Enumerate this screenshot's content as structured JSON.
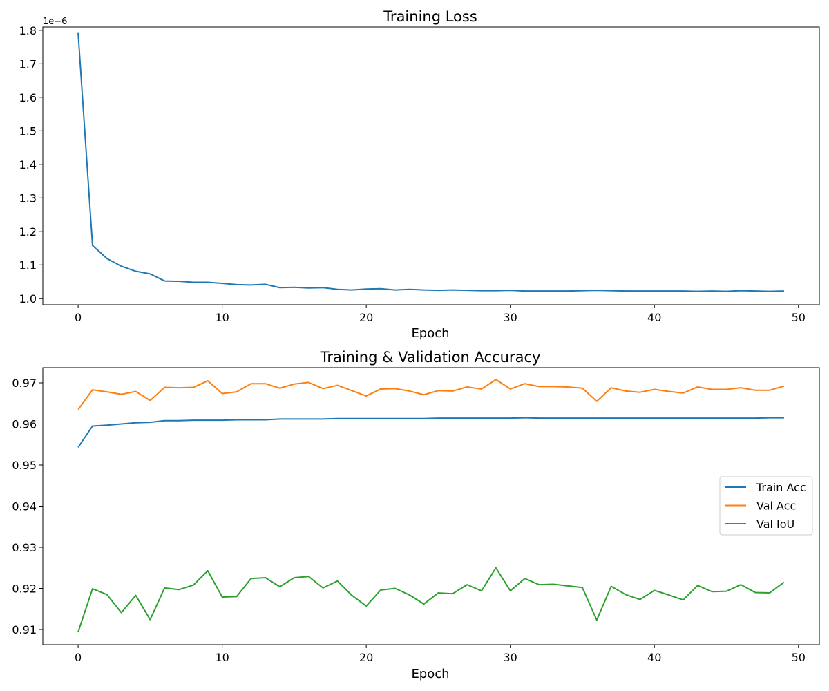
{
  "chart_data": [
    {
      "type": "line",
      "title": "Training Loss",
      "xlabel": "Epoch",
      "ylabel": "",
      "offset_label": "1e−6",
      "xlim": [
        -2.45,
        51.45
      ],
      "ylim": [
        0.981,
        1.81
      ],
      "xticks": [
        0,
        10,
        20,
        30,
        40,
        50
      ],
      "yticks": [
        1.0,
        1.1,
        1.2,
        1.3,
        1.4,
        1.5,
        1.6,
        1.7,
        1.8
      ],
      "ytick_labels": [
        "1.0",
        "1.1",
        "1.2",
        "1.3",
        "1.4",
        "1.5",
        "1.6",
        "1.7",
        "1.8"
      ],
      "grid": false,
      "legend": null,
      "series": [
        {
          "color": "#1f77b4",
          "x": [
            0,
            1,
            2,
            3,
            4,
            5,
            6,
            7,
            8,
            9,
            10,
            11,
            12,
            13,
            14,
            15,
            16,
            17,
            18,
            19,
            20,
            21,
            22,
            23,
            24,
            25,
            26,
            27,
            28,
            29,
            30,
            31,
            32,
            33,
            34,
            35,
            36,
            37,
            38,
            39,
            40,
            41,
            42,
            43,
            44,
            45,
            46,
            47,
            48,
            49
          ],
          "values": [
            1.792,
            1.158,
            1.119,
            1.096,
            1.081,
            1.073,
            1.052,
            1.051,
            1.048,
            1.048,
            1.045,
            1.041,
            1.04,
            1.042,
            1.032,
            1.033,
            1.031,
            1.032,
            1.027,
            1.025,
            1.028,
            1.029,
            1.025,
            1.027,
            1.025,
            1.024,
            1.025,
            1.024,
            1.023,
            1.023,
            1.024,
            1.022,
            1.022,
            1.022,
            1.022,
            1.023,
            1.024,
            1.023,
            1.022,
            1.022,
            1.022,
            1.022,
            1.022,
            1.021,
            1.022,
            1.021,
            1.023,
            1.022,
            1.021,
            1.022
          ]
        }
      ]
    },
    {
      "type": "line",
      "title": "Training & Validation Accuracy",
      "xlabel": "Epoch",
      "ylabel": "",
      "xlim": [
        -2.45,
        51.45
      ],
      "ylim": [
        0.9063,
        0.9737
      ],
      "xticks": [
        0,
        10,
        20,
        30,
        40,
        50
      ],
      "yticks": [
        0.91,
        0.92,
        0.93,
        0.94,
        0.95,
        0.96,
        0.97
      ],
      "ytick_labels": [
        "0.91",
        "0.92",
        "0.93",
        "0.94",
        "0.95",
        "0.96",
        "0.97"
      ],
      "grid": false,
      "legend": "center-right",
      "series": [
        {
          "name": "Train Acc",
          "color": "#1f77b4",
          "x": [
            0,
            1,
            2,
            3,
            4,
            5,
            6,
            7,
            8,
            9,
            10,
            11,
            12,
            13,
            14,
            15,
            16,
            17,
            18,
            19,
            20,
            21,
            22,
            23,
            24,
            25,
            26,
            27,
            28,
            29,
            30,
            31,
            32,
            33,
            34,
            35,
            36,
            37,
            38,
            39,
            40,
            41,
            42,
            43,
            44,
            45,
            46,
            47,
            48,
            49
          ],
          "values": [
            0.9543,
            0.9595,
            0.9597,
            0.96,
            0.9603,
            0.9604,
            0.9608,
            0.9608,
            0.9609,
            0.9609,
            0.9609,
            0.961,
            0.961,
            0.961,
            0.9612,
            0.9612,
            0.9612,
            0.9612,
            0.9613,
            0.9613,
            0.9613,
            0.9613,
            0.9613,
            0.9613,
            0.9613,
            0.9614,
            0.9614,
            0.9614,
            0.9614,
            0.9614,
            0.9614,
            0.9615,
            0.9614,
            0.9614,
            0.9614,
            0.9614,
            0.9614,
            0.9614,
            0.9614,
            0.9614,
            0.9614,
            0.9614,
            0.9614,
            0.9614,
            0.9614,
            0.9614,
            0.9614,
            0.9614,
            0.9615,
            0.9615
          ]
        },
        {
          "name": "Val Acc",
          "color": "#ff7f0e",
          "x": [
            0,
            1,
            2,
            3,
            4,
            5,
            6,
            7,
            8,
            9,
            10,
            11,
            12,
            13,
            14,
            15,
            16,
            17,
            18,
            19,
            20,
            21,
            22,
            23,
            24,
            25,
            26,
            27,
            28,
            29,
            30,
            31,
            32,
            33,
            34,
            35,
            36,
            37,
            38,
            39,
            40,
            41,
            42,
            43,
            44,
            45,
            46,
            47,
            48,
            49
          ],
          "values": [
            0.9635,
            0.9683,
            0.9678,
            0.9672,
            0.9679,
            0.9657,
            0.9689,
            0.9688,
            0.9689,
            0.9705,
            0.9674,
            0.9678,
            0.9698,
            0.9698,
            0.9687,
            0.9697,
            0.9701,
            0.9686,
            0.9694,
            0.9681,
            0.9668,
            0.9685,
            0.9686,
            0.968,
            0.9671,
            0.9681,
            0.968,
            0.969,
            0.9685,
            0.9708,
            0.9685,
            0.9698,
            0.9691,
            0.9691,
            0.969,
            0.9687,
            0.9655,
            0.9688,
            0.968,
            0.9677,
            0.9684,
            0.9679,
            0.9675,
            0.969,
            0.9684,
            0.9684,
            0.9688,
            0.9682,
            0.9682,
            0.9692
          ]
        },
        {
          "name": "Val IoU",
          "color": "#2ca02c",
          "x": [
            0,
            1,
            2,
            3,
            4,
            5,
            6,
            7,
            8,
            9,
            10,
            11,
            12,
            13,
            14,
            15,
            16,
            17,
            18,
            19,
            20,
            21,
            22,
            23,
            24,
            25,
            26,
            27,
            28,
            29,
            30,
            31,
            32,
            33,
            34,
            35,
            36,
            37,
            38,
            39,
            40,
            41,
            42,
            43,
            44,
            45,
            46,
            47,
            48,
            49
          ],
          "values": [
            0.9094,
            0.9199,
            0.9185,
            0.9141,
            0.9183,
            0.9124,
            0.9201,
            0.9197,
            0.9208,
            0.9243,
            0.9179,
            0.918,
            0.9224,
            0.9226,
            0.9204,
            0.9226,
            0.9229,
            0.9201,
            0.9218,
            0.9183,
            0.9157,
            0.9196,
            0.92,
            0.9184,
            0.9162,
            0.9189,
            0.9187,
            0.9209,
            0.9194,
            0.925,
            0.9194,
            0.9224,
            0.9209,
            0.921,
            0.9206,
            0.9202,
            0.9123,
            0.9205,
            0.9185,
            0.9173,
            0.9195,
            0.9184,
            0.9172,
            0.9207,
            0.9192,
            0.9193,
            0.9209,
            0.919,
            0.9189,
            0.9215
          ]
        }
      ]
    }
  ]
}
